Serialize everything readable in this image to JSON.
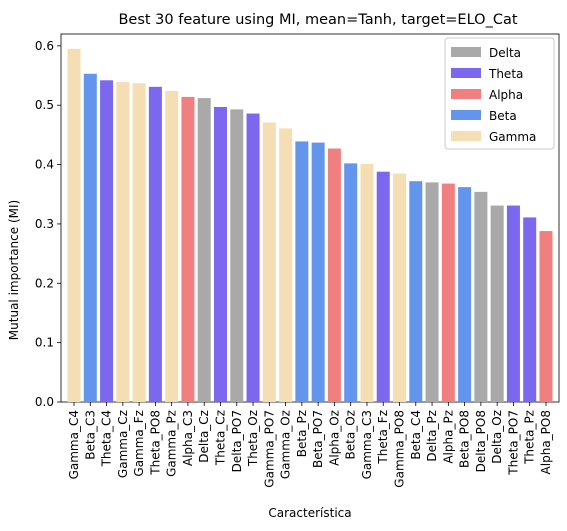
{
  "chart_data": {
    "type": "bar",
    "title": "Best 30 feature using MI, mean=Tanh, target=ELO_Cat",
    "xlabel": "Característica",
    "ylabel": "Mutual importance (MI)",
    "ylim": [
      0,
      0.62
    ],
    "yticks": [
      "0.0",
      "0.1",
      "0.2",
      "0.3",
      "0.4",
      "0.5",
      "0.6"
    ],
    "legend_position": "top-right",
    "legend": [
      {
        "name": "Delta",
        "color": "#a9a9a9"
      },
      {
        "name": "Theta",
        "color": "#7b68ee"
      },
      {
        "name": "Alpha",
        "color": "#f08080"
      },
      {
        "name": "Beta",
        "color": "#6495ed"
      },
      {
        "name": "Gamma",
        "color": "#f5deb3"
      }
    ],
    "categories": [
      "Gamma_C4",
      "Beta_C3",
      "Theta_C4",
      "Gamma_Cz",
      "Gamma_Fz",
      "Theta_PO8",
      "Gamma_Pz",
      "Alpha_C3",
      "Delta_Cz",
      "Theta_Cz",
      "Delta_PO7",
      "Theta_Oz",
      "Gamma_PO7",
      "Gamma_Oz",
      "Beta_Pz",
      "Beta_PO7",
      "Alpha_Oz",
      "Beta_Oz",
      "Gamma_C3",
      "Theta_Fz",
      "Gamma_PO8",
      "Beta_C4",
      "Delta_Pz",
      "Alpha_Pz",
      "Beta_PO8",
      "Delta_PO8",
      "Delta_Oz",
      "Theta_PO7",
      "Theta_Pz",
      "Alpha_PO8"
    ],
    "bands": [
      "Gamma",
      "Beta",
      "Theta",
      "Gamma",
      "Gamma",
      "Theta",
      "Gamma",
      "Alpha",
      "Delta",
      "Theta",
      "Delta",
      "Theta",
      "Gamma",
      "Gamma",
      "Beta",
      "Beta",
      "Alpha",
      "Beta",
      "Gamma",
      "Theta",
      "Gamma",
      "Beta",
      "Delta",
      "Alpha",
      "Beta",
      "Delta",
      "Delta",
      "Theta",
      "Theta",
      "Alpha"
    ],
    "values": [
      0.595,
      0.553,
      0.542,
      0.539,
      0.537,
      0.531,
      0.524,
      0.514,
      0.512,
      0.497,
      0.493,
      0.486,
      0.471,
      0.461,
      0.439,
      0.437,
      0.427,
      0.402,
      0.401,
      0.388,
      0.385,
      0.372,
      0.37,
      0.368,
      0.362,
      0.354,
      0.331,
      0.331,
      0.311,
      0.288
    ]
  }
}
